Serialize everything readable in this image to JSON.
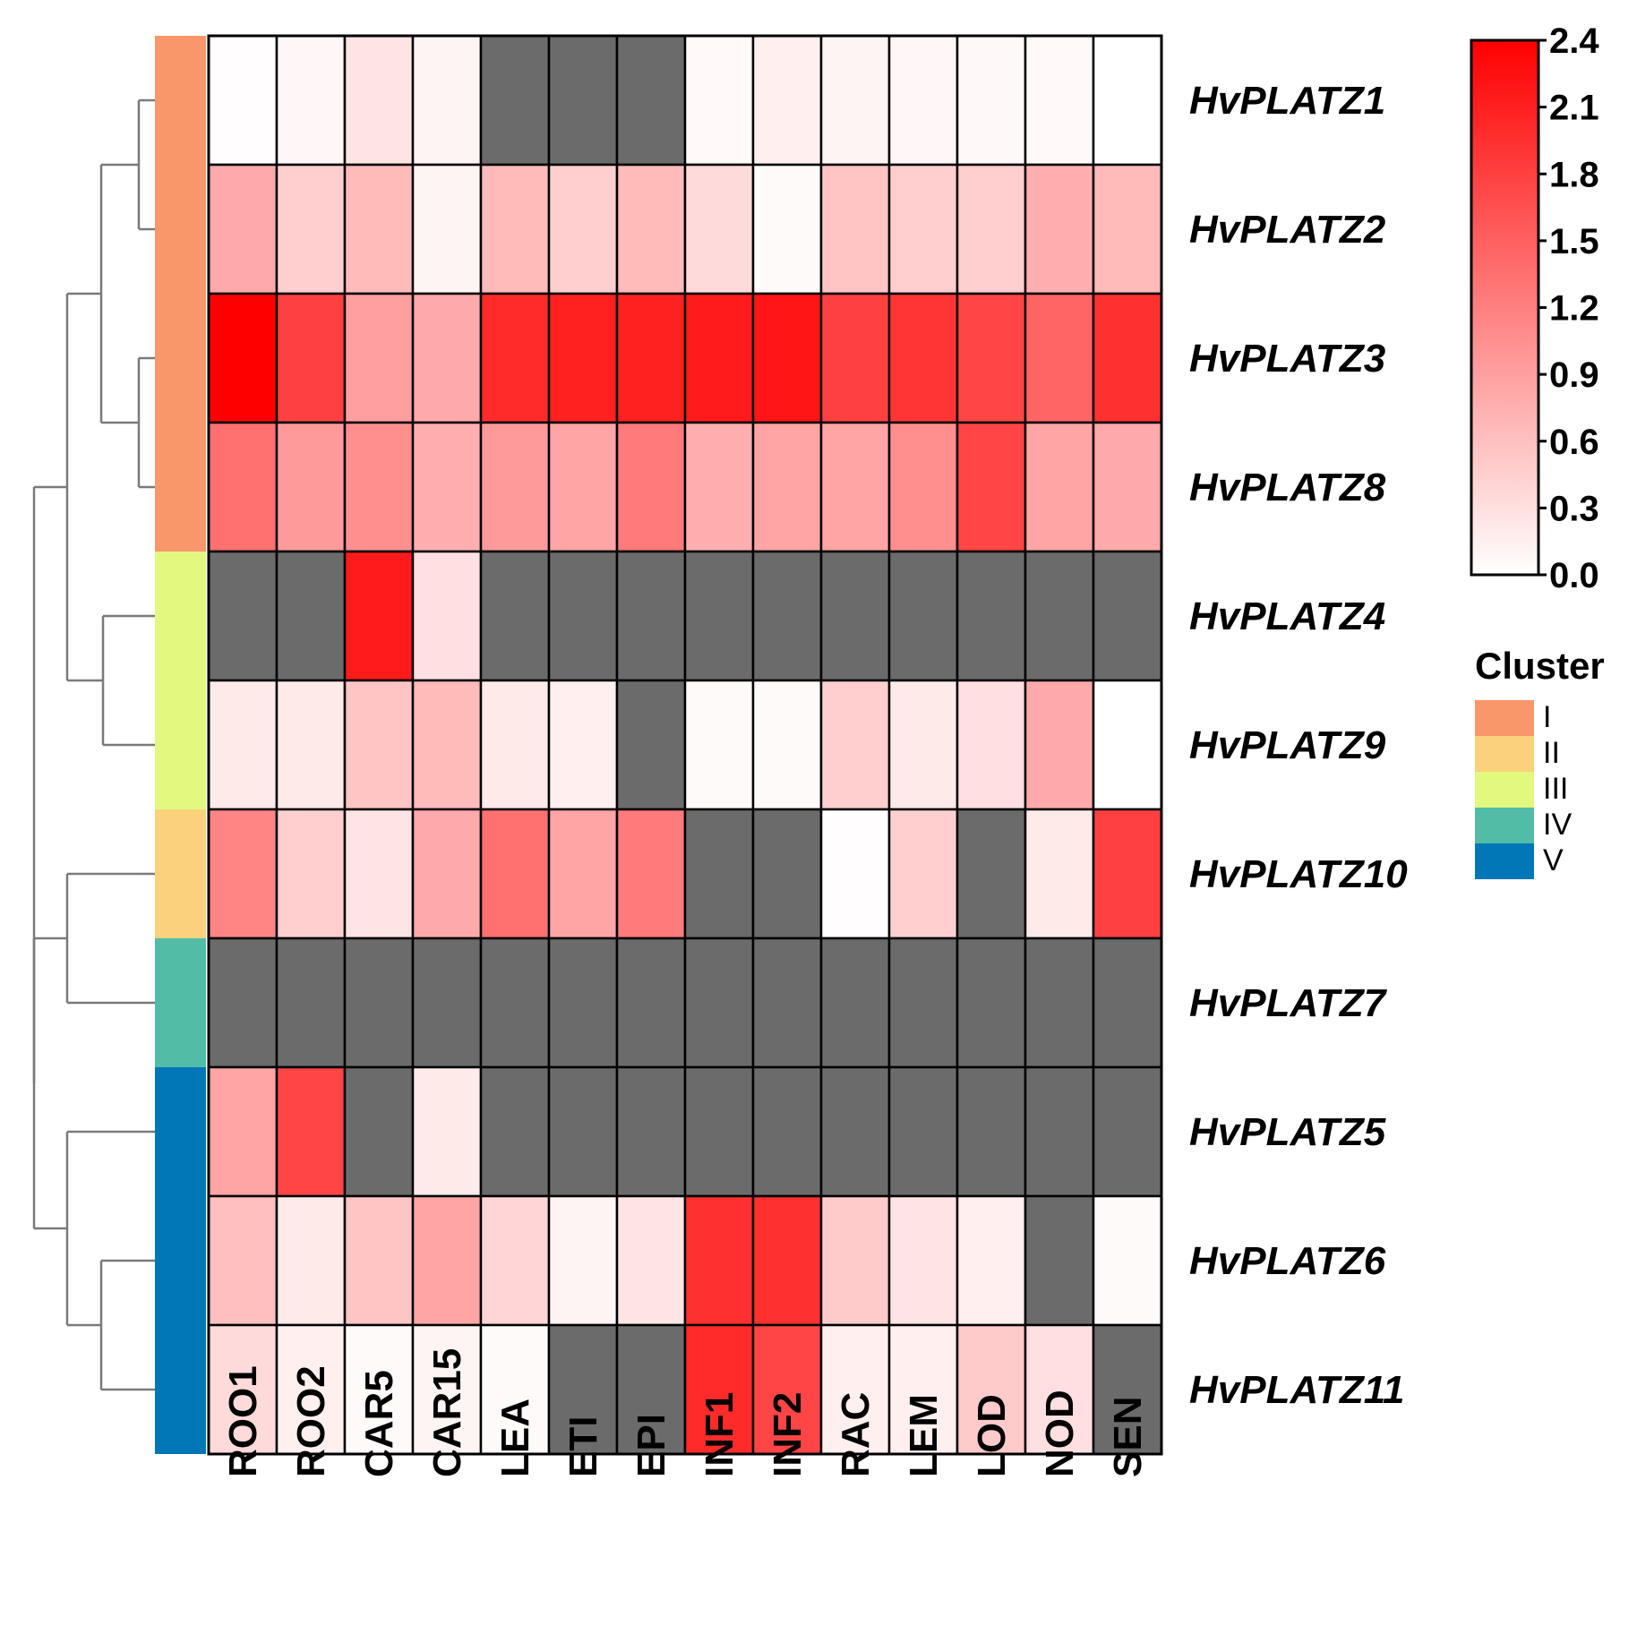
{
  "chart_data": {
    "type": "heatmap",
    "title": "",
    "xlabel": "",
    "ylabel": "",
    "columns": [
      "ROO1",
      "ROO2",
      "CAR5",
      "CAR15",
      "LEA",
      "ETI",
      "EPI",
      "INF1",
      "INF2",
      "RAC",
      "LEM",
      "LOD",
      "NOD",
      "SEN"
    ],
    "rows": [
      {
        "gene": "HvPLATZ1",
        "cluster": "I",
        "values": [
          0.02,
          0.08,
          0.25,
          0.1,
          null,
          null,
          null,
          0.06,
          0.15,
          0.1,
          0.08,
          0.07,
          0.06,
          0.0
        ]
      },
      {
        "gene": "HvPLATZ2",
        "cluster": "I",
        "values": [
          0.8,
          0.45,
          0.65,
          0.1,
          0.65,
          0.45,
          0.65,
          0.35,
          0.05,
          0.55,
          0.45,
          0.45,
          0.75,
          0.65
        ]
      },
      {
        "gene": "HvPLATZ3",
        "cluster": "I",
        "values": [
          2.4,
          1.8,
          0.9,
          0.8,
          2.0,
          2.1,
          2.1,
          2.15,
          2.2,
          1.8,
          1.9,
          1.75,
          1.45,
          1.95
        ]
      },
      {
        "gene": "HvPLATZ8",
        "cluster": "I",
        "values": [
          1.35,
          0.95,
          1.05,
          0.75,
          0.95,
          0.85,
          1.25,
          0.75,
          0.85,
          0.85,
          1.05,
          1.75,
          0.85,
          0.8
        ]
      },
      {
        "gene": "HvPLATZ4",
        "cluster": "III",
        "values": [
          null,
          null,
          2.15,
          0.3,
          null,
          null,
          null,
          null,
          null,
          null,
          null,
          null,
          null,
          null
        ]
      },
      {
        "gene": "HvPLATZ9",
        "cluster": "III",
        "values": [
          0.2,
          0.2,
          0.55,
          0.65,
          0.2,
          0.15,
          null,
          0.05,
          0.05,
          0.45,
          0.2,
          0.3,
          0.8,
          0.0
        ]
      },
      {
        "gene": "HvPLATZ10",
        "cluster": "II",
        "values": [
          1.15,
          0.45,
          0.25,
          0.8,
          1.35,
          0.85,
          1.25,
          null,
          null,
          0.02,
          0.45,
          null,
          0.2,
          1.8
        ]
      },
      {
        "gene": "HvPLATZ7",
        "cluster": "IV",
        "values": [
          null,
          null,
          null,
          null,
          null,
          null,
          null,
          null,
          null,
          null,
          null,
          null,
          null,
          null
        ]
      },
      {
        "gene": "HvPLATZ5",
        "cluster": "V",
        "values": [
          0.85,
          1.75,
          null,
          0.2,
          null,
          null,
          null,
          null,
          null,
          null,
          null,
          null,
          null,
          null
        ]
      },
      {
        "gene": "HvPLATZ6",
        "cluster": "V",
        "values": [
          0.6,
          0.2,
          0.55,
          0.85,
          0.4,
          0.1,
          0.25,
          1.95,
          1.95,
          0.5,
          0.25,
          0.15,
          null,
          0.05
        ]
      },
      {
        "gene": "HvPLATZ11",
        "cluster": "V",
        "values": [
          0.35,
          0.15,
          0.05,
          0.1,
          0.05,
          null,
          null,
          2.0,
          1.75,
          0.15,
          0.15,
          0.5,
          0.3,
          null
        ]
      }
    ],
    "color_scale": {
      "min": 0.0,
      "max": 2.4,
      "low_color": "#ffffff",
      "high_color": "#ff0000",
      "missing_color": "#6b6b6b",
      "ticks": [
        "0.0",
        "0.3",
        "0.6",
        "0.9",
        "1.2",
        "1.5",
        "1.8",
        "2.1",
        "2.4"
      ]
    },
    "cluster_legend": {
      "title": "Cluster",
      "entries": [
        {
          "label": "I",
          "color": "#f9976b"
        },
        {
          "label": "II",
          "color": "#fbd27b"
        },
        {
          "label": "III",
          "color": "#e2f87f"
        },
        {
          "label": "IV",
          "color": "#52bca6"
        },
        {
          "label": "V",
          "color": "#0177b7"
        }
      ]
    },
    "dendrogram_color": "#7a7a7a"
  }
}
